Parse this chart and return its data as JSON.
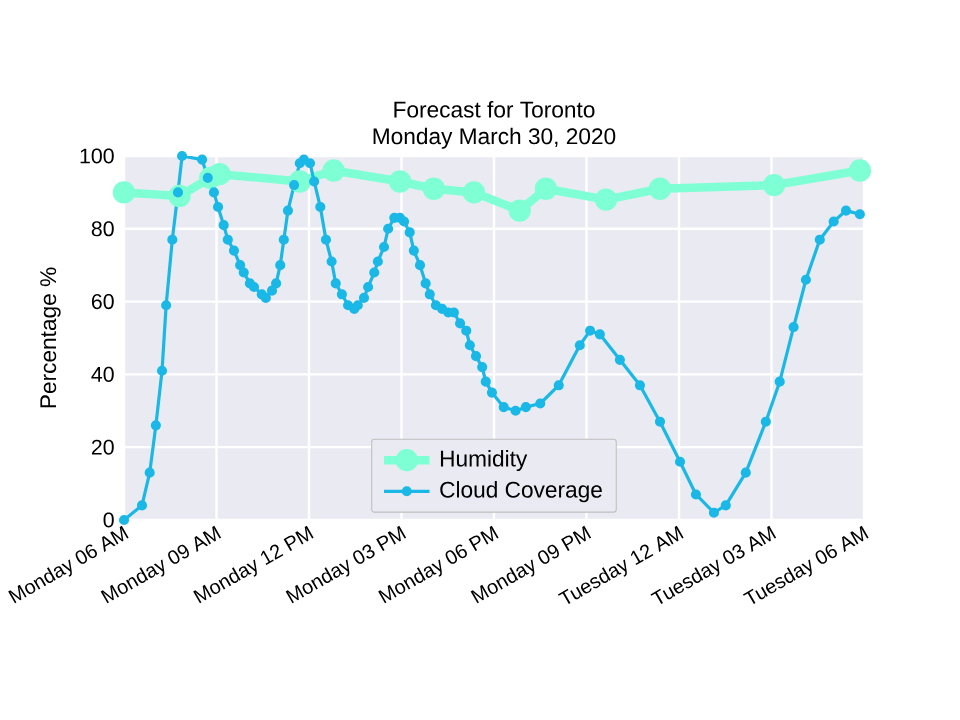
{
  "chart_data": {
    "type": "line",
    "title": "Forecast for Toronto",
    "subtitle": "Monday March 30, 2020",
    "ylabel": "Percentage %",
    "xlim": [
      "2020-03-30T06:00",
      "2020-03-31T06:00"
    ],
    "ylim": [
      0,
      100
    ],
    "yticks": [
      0,
      20,
      40,
      60,
      80,
      100
    ],
    "xticks": [
      {
        "value": "2020-03-30T06:00",
        "label": "Monday 06 AM"
      },
      {
        "value": "2020-03-30T09:00",
        "label": "Monday 09 AM"
      },
      {
        "value": "2020-03-30T12:00",
        "label": "Monday 12 PM"
      },
      {
        "value": "2020-03-30T15:00",
        "label": "Monday 03 PM"
      },
      {
        "value": "2020-03-30T18:00",
        "label": "Monday 06 PM"
      },
      {
        "value": "2020-03-30T21:00",
        "label": "Monday 09 PM"
      },
      {
        "value": "2020-03-31T00:00",
        "label": "Tuesday 12 AM"
      },
      {
        "value": "2020-03-31T03:00",
        "label": "Tuesday 03 AM"
      },
      {
        "value": "2020-03-31T06:00",
        "label": "Tuesday 06 AM"
      }
    ],
    "grid": true,
    "legend": "bottom",
    "marker": "circle",
    "line_style": "solid",
    "series": [
      {
        "name": "Humidity",
        "color": "#7fffd4",
        "x": [
          "2020-03-30T06:00",
          "2020-03-30T07:48",
          "2020-03-30T08:48",
          "2020-03-30T09:06",
          "2020-03-30T11:42",
          "2020-03-30T12:48",
          "2020-03-30T14:57",
          "2020-03-30T16:03",
          "2020-03-30T17:21",
          "2020-03-30T18:50",
          "2020-03-30T19:41",
          "2020-03-30T21:38",
          "2020-03-30T23:23",
          "2020-03-31T03:05",
          "2020-03-31T05:52"
        ],
        "values": [
          90,
          89,
          94,
          95,
          93,
          96,
          93,
          91,
          90,
          85,
          91,
          88,
          91,
          92,
          96
        ]
      },
      {
        "name": "Cloud Coverage",
        "color": "#1ab8e6",
        "x": [
          "2020-03-30T06:00",
          "2020-03-30T06:35",
          "2020-03-30T06:50",
          "2020-03-30T07:02",
          "2020-03-30T07:14",
          "2020-03-30T07:22",
          "2020-03-30T07:34",
          "2020-03-30T07:45",
          "2020-03-30T07:53",
          "2020-03-30T08:32",
          "2020-03-30T08:43",
          "2020-03-30T08:55",
          "2020-03-30T09:03",
          "2020-03-30T09:14",
          "2020-03-30T09:22",
          "2020-03-30T09:34",
          "2020-03-30T09:46",
          "2020-03-30T09:53",
          "2020-03-30T10:05",
          "2020-03-30T10:13",
          "2020-03-30T10:28",
          "2020-03-30T10:36",
          "2020-03-30T10:48",
          "2020-03-30T10:56",
          "2020-03-30T11:04",
          "2020-03-30T11:11",
          "2020-03-30T11:19",
          "2020-03-30T11:31",
          "2020-03-30T11:42",
          "2020-03-30T11:50",
          "2020-03-30T12:02",
          "2020-03-30T12:10",
          "2020-03-30T12:22",
          "2020-03-30T12:33",
          "2020-03-30T12:44",
          "2020-03-30T12:52",
          "2020-03-30T13:04",
          "2020-03-30T13:16",
          "2020-03-30T13:28",
          "2020-03-30T13:35",
          "2020-03-30T13:47",
          "2020-03-30T13:55",
          "2020-03-30T14:07",
          "2020-03-30T14:14",
          "2020-03-30T14:26",
          "2020-03-30T14:34",
          "2020-03-30T14:46",
          "2020-03-30T14:57",
          "2020-03-30T15:05",
          "2020-03-30T15:16",
          "2020-03-30T15:24",
          "2020-03-30T15:36",
          "2020-03-30T15:47",
          "2020-03-30T15:55",
          "2020-03-30T16:07",
          "2020-03-30T16:19",
          "2020-03-30T16:31",
          "2020-03-30T16:42",
          "2020-03-30T16:54",
          "2020-03-30T17:06",
          "2020-03-30T17:13",
          "2020-03-30T17:25",
          "2020-03-30T17:37",
          "2020-03-30T17:44",
          "2020-03-30T17:56",
          "2020-03-30T18:19",
          "2020-03-30T18:42",
          "2020-03-30T19:02",
          "2020-03-30T19:30",
          "2020-03-30T20:06",
          "2020-03-30T20:47",
          "2020-03-30T21:07",
          "2020-03-30T21:26",
          "2020-03-30T22:05",
          "2020-03-30T22:44",
          "2020-03-30T23:23",
          "2020-03-31T00:02",
          "2020-03-31T00:33",
          "2020-03-31T01:08",
          "2020-03-31T01:31",
          "2020-03-31T02:10",
          "2020-03-31T02:49",
          "2020-03-31T03:16",
          "2020-03-31T03:43",
          "2020-03-31T04:07",
          "2020-03-31T04:34",
          "2020-03-31T05:01",
          "2020-03-31T05:25",
          "2020-03-31T05:52"
        ],
        "values": [
          0,
          4,
          13,
          26,
          41,
          59,
          77,
          90,
          100,
          99,
          94,
          90,
          86,
          81,
          77,
          74,
          70,
          68,
          65,
          64,
          62,
          61,
          63,
          65,
          70,
          77,
          85,
          92,
          98,
          99,
          98,
          93,
          86,
          77,
          71,
          65,
          62,
          59,
          58,
          59,
          61,
          64,
          68,
          71,
          75,
          80,
          83,
          83,
          82,
          79,
          74,
          70,
          65,
          62,
          59,
          58,
          57,
          57,
          54,
          52,
          48,
          45,
          42,
          38,
          35,
          31,
          30,
          31,
          32,
          37,
          48,
          52,
          51,
          44,
          37,
          27,
          16,
          7,
          2,
          4,
          13,
          27,
          38,
          53,
          66,
          77,
          82,
          85,
          84
        ]
      }
    ]
  }
}
